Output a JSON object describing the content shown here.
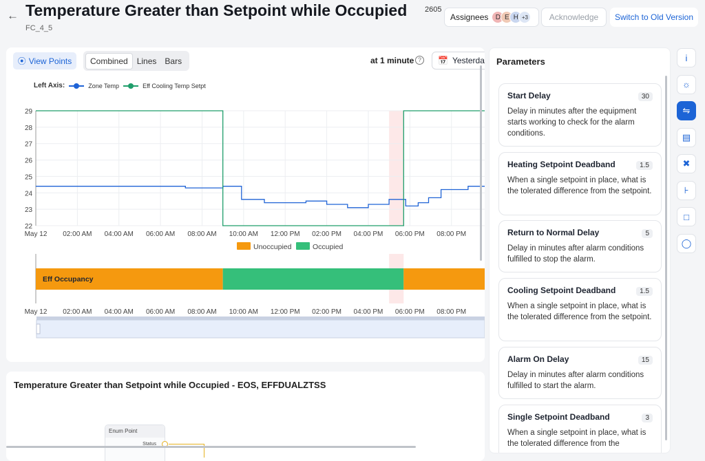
{
  "header": {
    "title": "Temperature Greater than Setpoint while Occupied",
    "count": "2605",
    "subtitle": "FC_4_5",
    "assignees_label": "Assignees",
    "avatars": [
      "D",
      "E",
      "H",
      "+3"
    ],
    "acknowledge_label": "Acknowledge",
    "switch_label": "Switch to Old Version"
  },
  "toolbar": {
    "view_points_label": "View Points",
    "tabs": [
      "Combined",
      "Lines",
      "Bars"
    ],
    "active_tab": "Combined",
    "interval_label": "at 1 minute",
    "date_label": "Yesterday"
  },
  "chart_data": [
    {
      "type": "line",
      "legend_title": "Left Axis:",
      "ylim": [
        22,
        29
      ],
      "y_ticks": [
        "29",
        "28",
        "27",
        "26",
        "25",
        "24",
        "23",
        "22"
      ],
      "x_ticks": [
        "May 12",
        "02:00 AM",
        "04:00 AM",
        "06:00 AM",
        "08:00 AM",
        "10:00 AM",
        "12:00 PM",
        "02:00 PM",
        "04:00 PM",
        "06:00 PM",
        "08:00 PM"
      ],
      "x_range_hours": [
        0,
        21.6
      ],
      "series": [
        {
          "name": "Zone Temp",
          "color": "#1f63d6",
          "points": [
            [
              0,
              24.4
            ],
            [
              7.2,
              24.4
            ],
            [
              7.2,
              24.3
            ],
            [
              9.0,
              24.3
            ],
            [
              9.0,
              24.4
            ],
            [
              9.9,
              24.4
            ],
            [
              9.9,
              23.6
            ],
            [
              11.0,
              23.6
            ],
            [
              11.0,
              23.4
            ],
            [
              13.0,
              23.4
            ],
            [
              13.0,
              23.5
            ],
            [
              14.0,
              23.5
            ],
            [
              14.0,
              23.3
            ],
            [
              15.0,
              23.3
            ],
            [
              15.0,
              23.1
            ],
            [
              16.0,
              23.1
            ],
            [
              16.0,
              23.3
            ],
            [
              17.0,
              23.3
            ],
            [
              17.0,
              23.6
            ],
            [
              17.8,
              23.6
            ],
            [
              17.8,
              23.2
            ],
            [
              18.4,
              23.2
            ],
            [
              18.4,
              23.4
            ],
            [
              18.9,
              23.4
            ],
            [
              18.9,
              23.7
            ],
            [
              19.5,
              23.7
            ],
            [
              19.5,
              24.2
            ],
            [
              20.8,
              24.2
            ],
            [
              20.8,
              24.4
            ],
            [
              21.6,
              24.4
            ]
          ]
        },
        {
          "name": "Eff Cooling Temp Setpt",
          "color": "#1f9e6b",
          "points": [
            [
              0,
              29
            ],
            [
              9.0,
              29
            ],
            [
              9.0,
              22
            ],
            [
              17.7,
              22
            ],
            [
              17.7,
              29
            ],
            [
              21.6,
              29
            ]
          ]
        }
      ],
      "highlight_range_hours": [
        17.0,
        17.7
      ]
    },
    {
      "type": "bar",
      "row_label": "Eff Occupancy",
      "legend": [
        {
          "name": "Unoccupied",
          "color": "#f5990f"
        },
        {
          "name": "Occupied",
          "color": "#35bf7a"
        }
      ],
      "x_ticks": [
        "May 12",
        "02:00 AM",
        "04:00 AM",
        "06:00 AM",
        "08:00 AM",
        "10:00 AM",
        "12:00 PM",
        "02:00 PM",
        "04:00 PM",
        "06:00 PM",
        "08:00 PM"
      ],
      "segments": [
        {
          "state": "Unoccupied",
          "start_hours": 0,
          "end_hours": 9.0
        },
        {
          "state": "Occupied",
          "start_hours": 9.0,
          "end_hours": 17.7
        },
        {
          "state": "Unoccupied",
          "start_hours": 17.7,
          "end_hours": 21.6
        }
      ]
    }
  ],
  "flow": {
    "title": "Temperature Greater than Setpoint while Occupied - EOS, EFFDUALZTSS",
    "node_title": "Enum Point",
    "node_port": "Status"
  },
  "parameters": {
    "title": "Parameters",
    "items": [
      {
        "name": "Start Delay",
        "value": "30",
        "description": "Delay in minutes after the equipment starts working to check for the alarm conditions."
      },
      {
        "name": "Heating Setpoint Deadband",
        "value": "1.5",
        "description": "When a single setpoint in place, what is the tolerated difference from the setpoint."
      },
      {
        "name": "Return to Normal Delay",
        "value": "5",
        "description": "Delay in minutes after alarm conditions fulfilled to stop the alarm."
      },
      {
        "name": "Cooling Setpoint Deadband",
        "value": "1.5",
        "description": "When a single setpoint in place, what is the tolerated difference from the setpoint."
      },
      {
        "name": "Alarm On Delay",
        "value": "15",
        "description": "Delay in minutes after alarm conditions fulfilled to start the alarm."
      },
      {
        "name": "Single Setpoint Deadband",
        "value": "3",
        "description": "When a single setpoint in place, what is the tolerated difference from the"
      }
    ]
  },
  "rail": [
    "info-icon",
    "bulb-icon",
    "sliders-icon",
    "clipboard-icon",
    "tools-icon",
    "workflow-icon",
    "chat-icon",
    "bell-icon"
  ],
  "rail_active": "sliders-icon"
}
